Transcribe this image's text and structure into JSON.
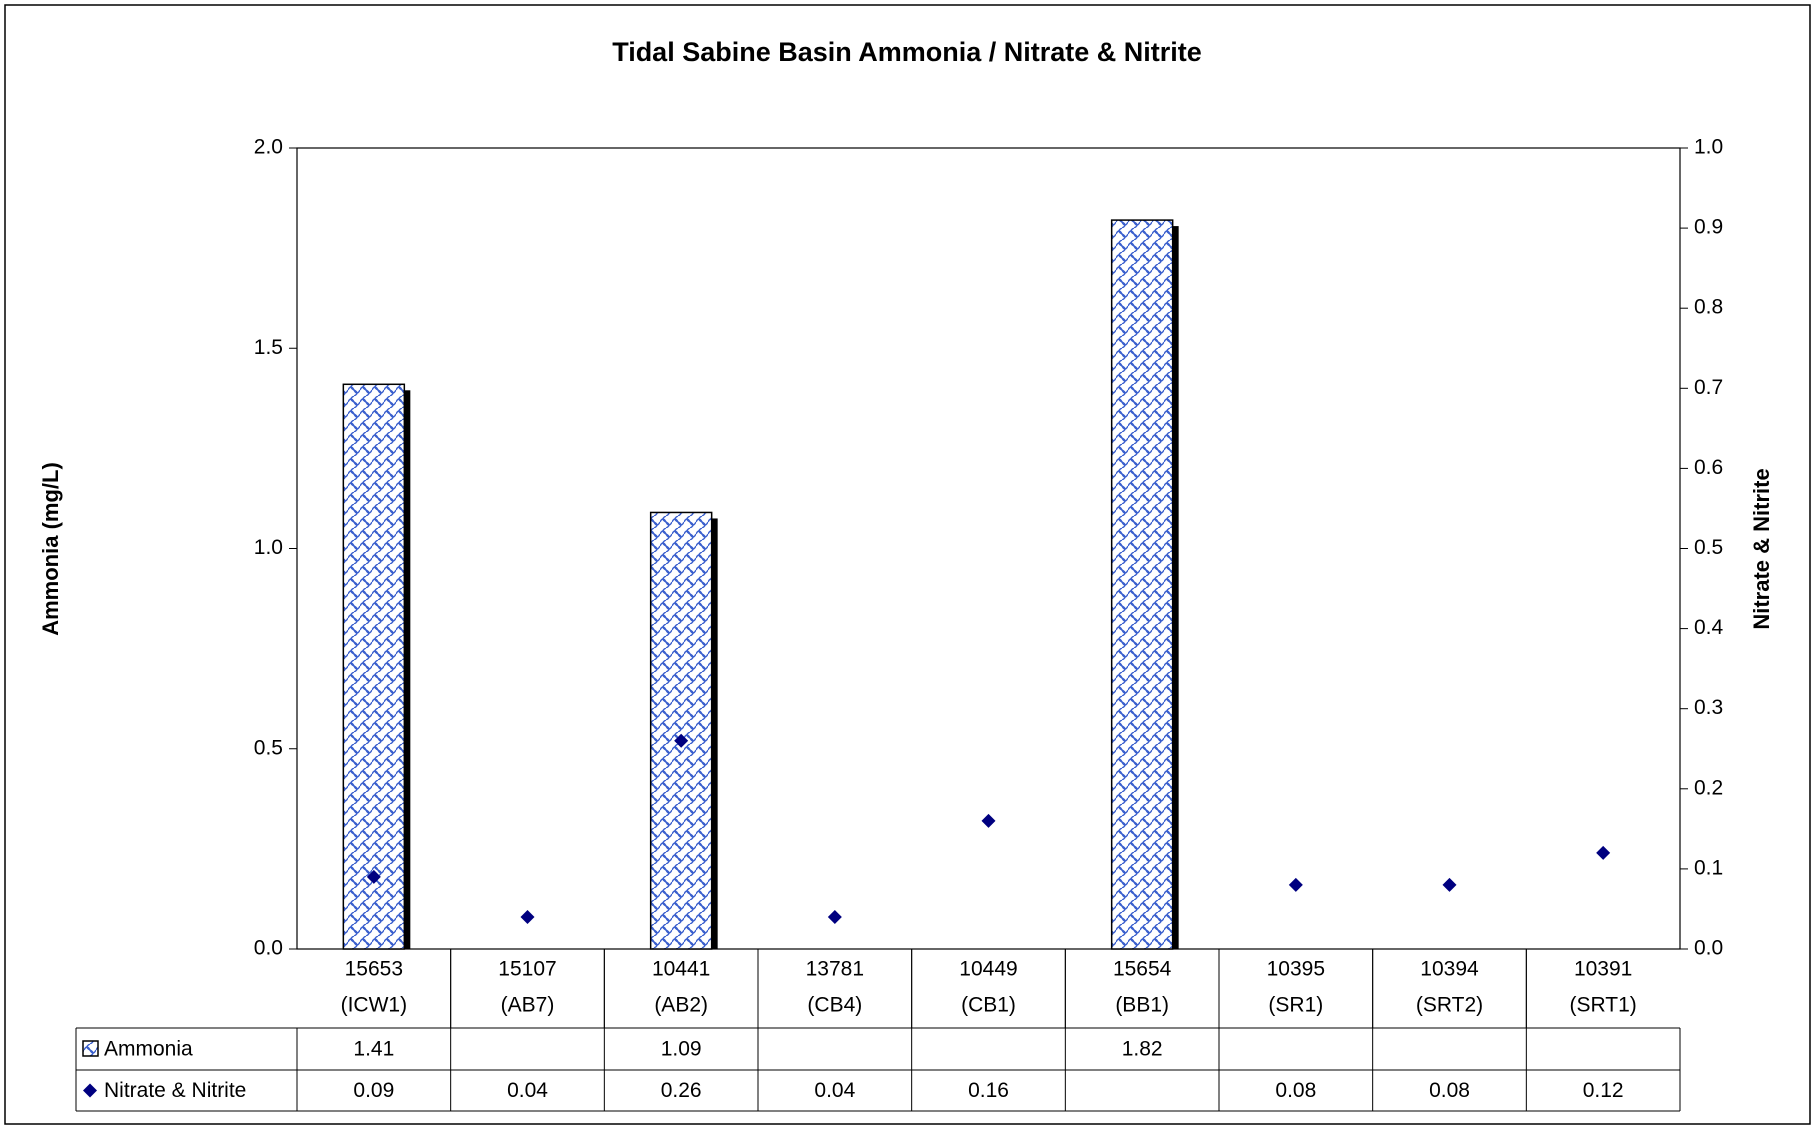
{
  "chart_data": {
    "type": "bar",
    "title": "Tidal Sabine Basin Ammonia / Nitrate & Nitrite",
    "y_label": "Ammonia (mg/L)",
    "y2_label": "Nitrate & Nitrite",
    "categories": [
      [
        "15653",
        "(ICW1)"
      ],
      [
        "15107",
        "(AB7)"
      ],
      [
        "10441",
        "(AB2)"
      ],
      [
        "13781",
        "(CB4)"
      ],
      [
        "10449",
        "(CB1)"
      ],
      [
        "15654",
        "(BB1)"
      ],
      [
        "10395",
        "(SR1)"
      ],
      [
        "10394",
        "(SRT2)"
      ],
      [
        "10391",
        "(SRT1)"
      ]
    ],
    "series": [
      {
        "name": "Ammonia",
        "type": "bar",
        "color": "#3a5fcd",
        "values": [
          1.41,
          null,
          1.09,
          null,
          null,
          1.82,
          null,
          null,
          null
        ]
      },
      {
        "name": "Nitrate & Nitrite",
        "type": "scatter",
        "axis": "y2",
        "color": "#000080",
        "values": [
          0.09,
          0.04,
          0.26,
          0.04,
          0.16,
          null,
          0.08,
          0.08,
          0.12
        ]
      }
    ],
    "ylim": [
      0,
      2
    ],
    "yticks": [
      {
        "value": 0,
        "label": "0.0"
      },
      0.5,
      {
        "value": 1,
        "label": "1.0"
      },
      1.5,
      {
        "value": 2,
        "label": "2.0"
      }
    ],
    "y2lim": [
      0,
      1
    ],
    "y2ticks": [
      {
        "value": 0,
        "label": "0.0"
      },
      0.1,
      0.2,
      0.3,
      0.4,
      0.5,
      0.6,
      0.7,
      0.8,
      0.9,
      {
        "value": 1,
        "label": "1.0"
      }
    ],
    "data_table": true
  }
}
